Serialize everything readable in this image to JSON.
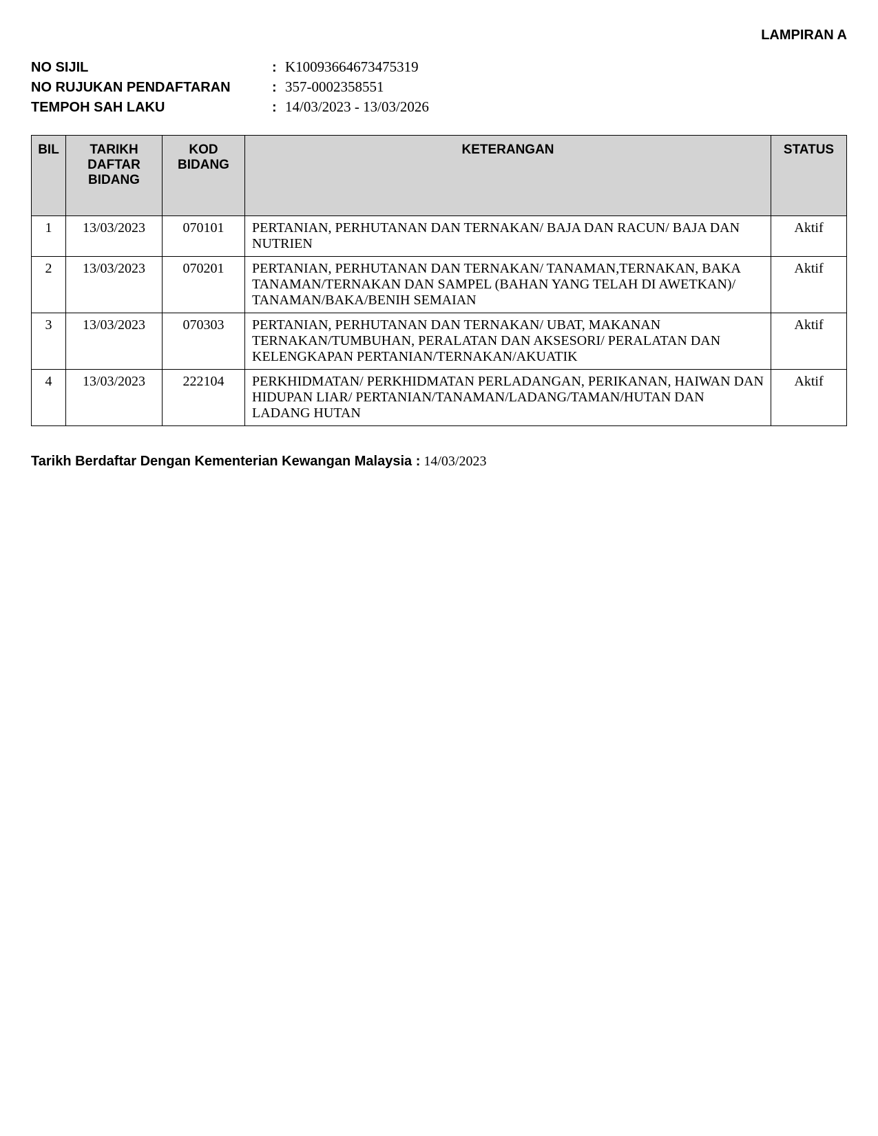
{
  "appendix_label": "LAMPIRAN A",
  "info": {
    "no_sijil_label": "NO SIJIL",
    "no_sijil_value": "K10093664673475319",
    "no_rujukan_label": "NO RUJUKAN PENDAFTARAN",
    "no_rujukan_value": "357-0002358551",
    "tempoh_label": "TEMPOH SAH LAKU",
    "tempoh_value": "14/03/2023  -  13/03/2026"
  },
  "table": {
    "headers": {
      "bil": "BIL",
      "tarikh": "TARIKH DAFTAR BIDANG",
      "kod": "KOD BIDANG",
      "keterangan": "KETERANGAN",
      "status": "STATUS"
    },
    "rows": [
      {
        "bil": "1",
        "tarikh": "13/03/2023",
        "kod": "070101",
        "keterangan": "PERTANIAN, PERHUTANAN DAN TERNAKAN/ BAJA DAN RACUN/ BAJA DAN NUTRIEN",
        "status": "Aktif"
      },
      {
        "bil": "2",
        "tarikh": "13/03/2023",
        "kod": "070201",
        "keterangan": "PERTANIAN, PERHUTANAN DAN TERNAKAN/ TANAMAN,TERNAKAN, BAKA TANAMAN/TERNAKAN DAN SAMPEL (BAHAN YANG TELAH DI AWETKAN)/ TANAMAN/BAKA/BENIH SEMAIAN",
        "status": "Aktif"
      },
      {
        "bil": "3",
        "tarikh": "13/03/2023",
        "kod": "070303",
        "keterangan": "PERTANIAN, PERHUTANAN DAN TERNAKAN/ UBAT, MAKANAN TERNAKAN/TUMBUHAN, PERALATAN DAN AKSESORI/ PERALATAN DAN KELENGKAPAN PERTANIAN/TERNAKAN/AKUATIK",
        "status": "Aktif"
      },
      {
        "bil": "4",
        "tarikh": "13/03/2023",
        "kod": "222104",
        "keterangan": "PERKHIDMATAN/ PERKHIDMATAN PERLADANGAN, PERIKANAN, HAIWAN DAN HIDUPAN LIAR/ PERTANIAN/TANAMAN/LADANG/TAMAN/HUTAN DAN LADANG HUTAN",
        "status": "Aktif"
      }
    ]
  },
  "footer": {
    "label": "Tarikh Berdaftar Dengan Kementerian Kewangan Malaysia :",
    "value": "14/03/2023"
  }
}
